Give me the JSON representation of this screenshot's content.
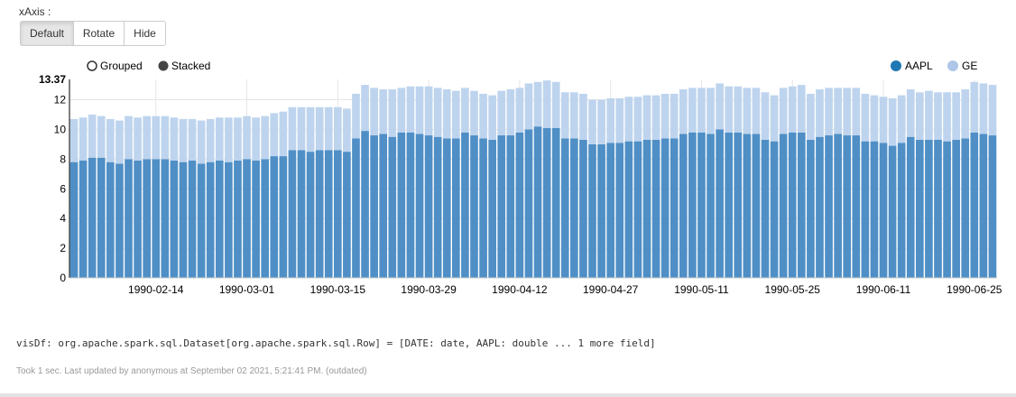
{
  "controls": {
    "xaxis_label": "xAxis :",
    "buttons": [
      "Default",
      "Rotate",
      "Hide"
    ],
    "active_button": "Default"
  },
  "colors": {
    "series1": "#4f8fc6",
    "series2": "#bed4ee",
    "grid": "#e6e6e6",
    "axis": "#000000"
  },
  "chart_data": {
    "type": "bar",
    "mode": "stacked",
    "mode_options": [
      "Grouped",
      "Stacked"
    ],
    "selected_mode": "Stacked",
    "legend_position": "top-right",
    "y_max_label": "13.37",
    "ylim": [
      0,
      13.37
    ],
    "yticks": [
      0,
      2,
      4,
      6,
      8,
      10,
      12
    ],
    "x_tick_labels": [
      "1990-02-14",
      "1990-03-01",
      "1990-03-15",
      "1990-03-29",
      "1990-04-12",
      "1990-04-27",
      "1990-05-11",
      "1990-05-25",
      "1990-06-11",
      "1990-06-25"
    ],
    "x_tick_indices": [
      9,
      19,
      29,
      39,
      49,
      59,
      69,
      79,
      89,
      99
    ],
    "series": [
      {
        "name": "AAPL",
        "values": [
          7.8,
          7.9,
          8.1,
          8.1,
          7.8,
          7.7,
          8.0,
          7.9,
          8.0,
          8.0,
          8.0,
          7.9,
          7.8,
          7.9,
          7.7,
          7.8,
          7.9,
          7.8,
          7.9,
          8.0,
          7.9,
          8.0,
          8.2,
          8.2,
          8.6,
          8.6,
          8.5,
          8.6,
          8.6,
          8.6,
          8.5,
          9.4,
          9.9,
          9.6,
          9.7,
          9.5,
          9.8,
          9.8,
          9.7,
          9.6,
          9.5,
          9.4,
          9.4,
          9.8,
          9.6,
          9.4,
          9.3,
          9.6,
          9.6,
          9.8,
          10.0,
          10.2,
          10.1,
          10.1,
          9.4,
          9.4,
          9.3,
          9.0,
          9.0,
          9.1,
          9.1,
          9.2,
          9.2,
          9.3,
          9.3,
          9.4,
          9.4,
          9.7,
          9.8,
          9.8,
          9.7,
          10.0,
          9.8,
          9.8,
          9.7,
          9.7,
          9.3,
          9.2,
          9.7,
          9.8,
          9.8,
          9.3,
          9.5,
          9.6,
          9.7,
          9.6,
          9.6,
          9.2,
          9.2,
          9.1,
          8.9,
          9.1,
          9.5,
          9.3,
          9.3,
          9.3,
          9.2,
          9.3,
          9.4,
          9.8,
          9.7,
          9.6
        ]
      },
      {
        "name": "GE",
        "values": [
          2.9,
          2.9,
          2.9,
          2.8,
          2.9,
          2.9,
          2.9,
          2.9,
          2.9,
          2.9,
          2.9,
          2.9,
          2.9,
          2.8,
          2.9,
          2.9,
          2.9,
          3.0,
          2.9,
          2.9,
          2.9,
          2.9,
          2.9,
          3.0,
          2.9,
          2.9,
          3.0,
          2.9,
          2.9,
          2.9,
          2.9,
          3.0,
          3.1,
          3.2,
          3.0,
          3.2,
          3.0,
          3.1,
          3.2,
          3.3,
          3.3,
          3.3,
          3.2,
          3.0,
          3.0,
          3.0,
          3.0,
          3.0,
          3.1,
          3.0,
          3.1,
          3.0,
          3.2,
          3.1,
          3.1,
          3.1,
          3.1,
          3.0,
          3.0,
          3.0,
          3.0,
          3.0,
          3.0,
          3.0,
          3.0,
          3.0,
          3.0,
          3.0,
          3.0,
          3.0,
          3.1,
          3.1,
          3.1,
          3.1,
          3.1,
          3.1,
          3.2,
          3.1,
          3.1,
          3.1,
          3.2,
          3.1,
          3.2,
          3.2,
          3.1,
          3.2,
          3.2,
          3.2,
          3.1,
          3.1,
          3.2,
          3.2,
          3.2,
          3.2,
          3.3,
          3.2,
          3.3,
          3.2,
          3.3,
          3.4,
          3.4,
          3.4
        ]
      }
    ]
  },
  "output_text": "visDf: org.apache.spark.sql.Dataset[org.apache.spark.sql.Row] = [DATE: date, AAPL: double ... 1 more field]",
  "footer_text": "Took 1 sec. Last updated by anonymous at September 02 2021, 5:21:41 PM. (outdated)"
}
